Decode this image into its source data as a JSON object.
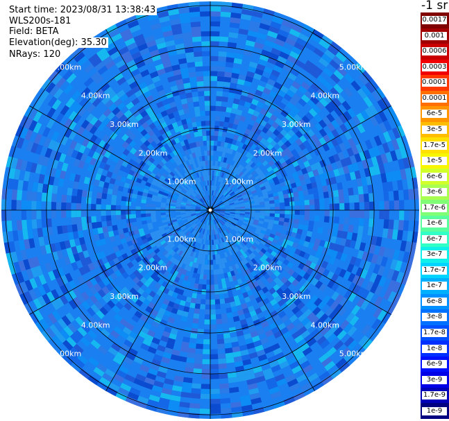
{
  "header": {
    "start_time": "Start time: 2023/08/31 13:38:43",
    "instrument": "WLS200s-181",
    "field": "Field: BETA",
    "elevation": "Elevation(deg): 35.30",
    "nrays": "NRays: 120"
  },
  "unit_label": "-1 sr",
  "colors": {
    "background": "#ffffff",
    "grid": "#000000",
    "range_label": "#ffffff"
  },
  "chart_data": {
    "type": "heatmap",
    "projection": "polar-ppi",
    "n_rays": 120,
    "spokes_count": 12,
    "range_rings_km": [
      1,
      2,
      3,
      4,
      5
    ],
    "ring_labels": [
      "1.00km",
      "2.00km",
      "3.00km",
      "4.00km",
      "5.00km"
    ],
    "max_range_km": 5.1,
    "colorbar": {
      "labels": [
        "0.0017",
        "0.001",
        "0.0006",
        "0.0003",
        "0.00017",
        "0.0001",
        "6e-5",
        "3e-5",
        "1.7e-5",
        "1e-5",
        "6e-6",
        "3e-6",
        "1.7e-6",
        "1e-6",
        "6e-7",
        "3e-7",
        "1.7e-7",
        "1e-7",
        "6e-8",
        "3e-8",
        "1.7e-8",
        "1e-8",
        "6e-9",
        "3e-9",
        "1.7e-9",
        "1e-9"
      ],
      "colors": [
        "#800000",
        "#a10000",
        "#c80000",
        "#f00000",
        "#ff3800",
        "#ff7000",
        "#ff9600",
        "#ffbd00",
        "#ffe000",
        "#f8f500",
        "#d0ff2a",
        "#a8ff4f",
        "#80ff76",
        "#59ff9e",
        "#32ffc5",
        "#10f0eb",
        "#00d4ff",
        "#00b0ff",
        "#0090ff",
        "#0070ff",
        "#0050ff",
        "#0030ff",
        "#0010ff",
        "#0000e8",
        "#0000b8",
        "#000080"
      ]
    },
    "field_colors": [
      "#0d8cf5",
      "#1f9bf0",
      "#2a7ae8",
      "#3b6fe0",
      "#1468e8",
      "#1e5ad8",
      "#16b8f0",
      "#0a4bd0"
    ]
  }
}
